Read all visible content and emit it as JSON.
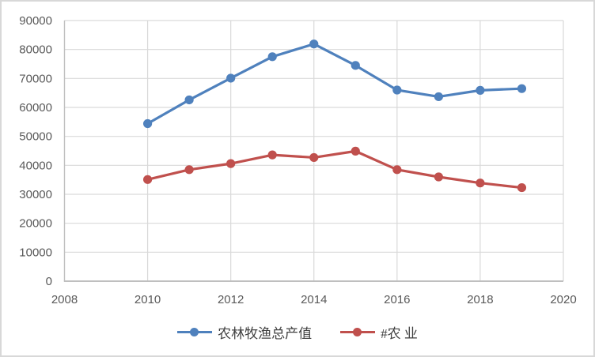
{
  "chart_data": {
    "type": "line",
    "title": "",
    "xlabel": "",
    "ylabel": "",
    "x": [
      2010,
      2011,
      2012,
      2013,
      2014,
      2015,
      2016,
      2017,
      2018,
      2019
    ],
    "series": [
      {
        "name": "农林牧渔总产值",
        "color": "#4F81BD",
        "values": [
          54400,
          62600,
          70100,
          77500,
          81900,
          74500,
          66000,
          63700,
          65900,
          66500
        ]
      },
      {
        "name": "#农 业",
        "color": "#C0504D",
        "values": [
          35100,
          38500,
          40600,
          43600,
          42700,
          44900,
          38500,
          36000,
          33900,
          32300
        ]
      }
    ],
    "xlim": [
      2008,
      2020
    ],
    "ylim": [
      0,
      90000
    ],
    "x_ticks": [
      2008,
      2010,
      2012,
      2014,
      2016,
      2018,
      2020
    ],
    "y_ticks": [
      0,
      10000,
      20000,
      30000,
      40000,
      50000,
      60000,
      70000,
      80000,
      90000
    ],
    "grid": "both",
    "legend_position": "bottom",
    "marker": "circle"
  },
  "style": {
    "gridline_color": "#D9D9D9",
    "axis_line_color": "#BFBFBF",
    "tick_label_color": "#595959",
    "background_color": "#FFFFFF"
  }
}
